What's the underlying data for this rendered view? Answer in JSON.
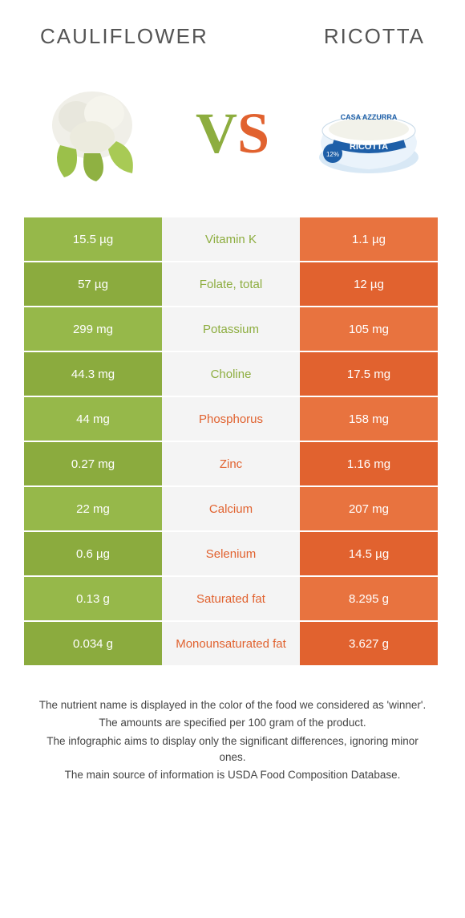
{
  "header": {
    "left_title": "CAULIFLOWER",
    "right_title": "RICOTTA"
  },
  "vs_label": "VS",
  "colors": {
    "left_food": "#8dad3f",
    "right_food": "#e1622f",
    "left_row_light": "#96b84a",
    "left_row_dark": "#8bab3e",
    "right_row_light": "#e8733f",
    "right_row_dark": "#e1622f",
    "mid_bg": "#f4f4f4",
    "vs_v": "#8dad3f",
    "vs_s": "#e1622f"
  },
  "rows": [
    {
      "nutrient": "Vitamin K",
      "left": "15.5 µg",
      "right": "1.1 µg",
      "winner": "left"
    },
    {
      "nutrient": "Folate, total",
      "left": "57 µg",
      "right": "12 µg",
      "winner": "left"
    },
    {
      "nutrient": "Potassium",
      "left": "299 mg",
      "right": "105 mg",
      "winner": "left"
    },
    {
      "nutrient": "Choline",
      "left": "44.3 mg",
      "right": "17.5 mg",
      "winner": "left"
    },
    {
      "nutrient": "Phosphorus",
      "left": "44 mg",
      "right": "158 mg",
      "winner": "right"
    },
    {
      "nutrient": "Zinc",
      "left": "0.27 mg",
      "right": "1.16 mg",
      "winner": "right"
    },
    {
      "nutrient": "Calcium",
      "left": "22 mg",
      "right": "207 mg",
      "winner": "right"
    },
    {
      "nutrient": "Selenium",
      "left": "0.6 µg",
      "right": "14.5 µg",
      "winner": "right"
    },
    {
      "nutrient": "Saturated fat",
      "left": "0.13 g",
      "right": "8.295 g",
      "winner": "right"
    },
    {
      "nutrient": "Monounsaturated fat",
      "left": "0.034 g",
      "right": "3.627 g",
      "winner": "right"
    }
  ],
  "footnotes": [
    "The nutrient name is displayed in the color of the food we considered as 'winner'.",
    "The amounts are specified per 100 gram of the product.",
    "The infographic aims to display only the significant differences, ignoring minor ones.",
    "The main source of information is USDA Food Composition Database."
  ]
}
